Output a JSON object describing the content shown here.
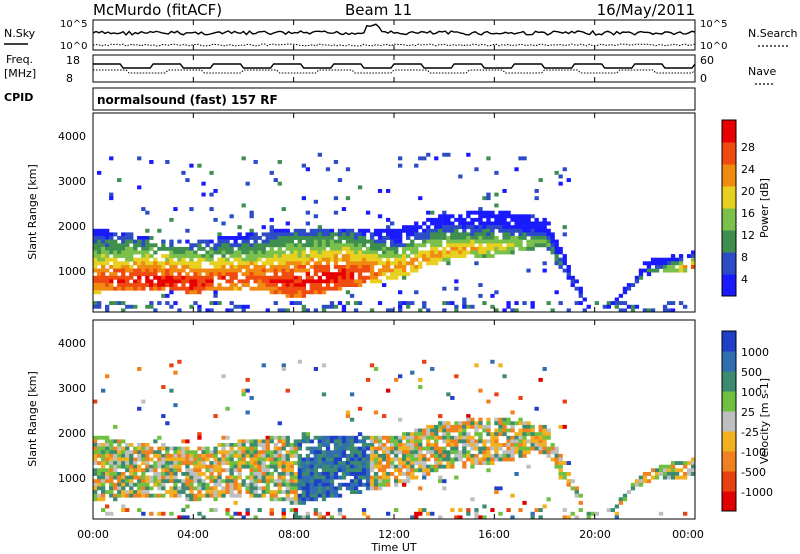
{
  "header": {
    "station": "McMurdo (fitACF)",
    "beam": "Beam 11",
    "date": "16/May/2011",
    "mode": "normalsound (fast) 157 RF",
    "cpid_label": "CPID"
  },
  "top_panel": {
    "left_label": "N.Sky",
    "right_label": "N.Search",
    "left_ticks": [
      "10^5",
      "10^0"
    ],
    "right_ticks": [
      "10^5",
      "10^0"
    ]
  },
  "freq_panel": {
    "left_label_1": "Freq.",
    "left_label_2": "[MHz]",
    "right_label": "Nave",
    "left_ticks": [
      "18",
      "8"
    ],
    "right_ticks": [
      "60",
      "0"
    ]
  },
  "x_axis": {
    "label": "Time UT",
    "ticks": [
      "00:00",
      "04:00",
      "08:00",
      "12:00",
      "16:00",
      "20:00",
      "00:00"
    ]
  },
  "power_panel": {
    "ylabel": "Slant Range [km]",
    "yticks": [
      "1000",
      "2000",
      "3000",
      "4000"
    ],
    "colorbar_label": "Power [dB]",
    "colorbar_ticks": [
      "4",
      "8",
      "12",
      "16",
      "20",
      "24",
      "28"
    ],
    "colorbar_colors": [
      "#1a1aff",
      "#2c4cc6",
      "#3e8f4f",
      "#7bc04a",
      "#e8d020",
      "#f08a10",
      "#f04a10",
      "#e80000"
    ]
  },
  "velocity_panel": {
    "ylabel": "Slant Range [km]",
    "yticks": [
      "1000",
      "2000",
      "3000",
      "4000"
    ],
    "colorbar_label": "Velocity [m s-1]",
    "colorbar_ticks": [
      "1000",
      "500",
      "100",
      "25",
      "-25",
      "-100",
      "-500",
      "-1000"
    ],
    "colorbar_colors": [
      "#1f3fc8",
      "#2f6fb0",
      "#3c8a70",
      "#6fc040",
      "#bfbfbf",
      "#f0b020",
      "#f08020",
      "#e84010",
      "#e00000"
    ]
  },
  "chart_data": {
    "type": "heatmap",
    "x_range_hours": [
      0,
      24
    ],
    "y_range_km": [
      180,
      4500
    ],
    "power_profile": [
      {
        "t": 0,
        "lo": 600,
        "hi": 2000,
        "peak": 24
      },
      {
        "t": 2,
        "lo": 650,
        "hi": 1800,
        "peak": 28
      },
      {
        "t": 4,
        "lo": 600,
        "hi": 1700,
        "peak": 28
      },
      {
        "t": 6,
        "lo": 700,
        "hi": 1900,
        "peak": 24
      },
      {
        "t": 8,
        "lo": 500,
        "hi": 2000,
        "peak": 28
      },
      {
        "t": 10,
        "lo": 700,
        "hi": 2000,
        "peak": 28
      },
      {
        "t": 12,
        "lo": 900,
        "hi": 2000,
        "peak": 20
      },
      {
        "t": 14,
        "lo": 1300,
        "hi": 2300,
        "peak": 20
      },
      {
        "t": 16,
        "lo": 1400,
        "hi": 2400,
        "peak": 16
      },
      {
        "t": 18,
        "lo": 1600,
        "hi": 2200,
        "peak": 12
      },
      {
        "t": 20,
        "lo": 0,
        "hi": 0,
        "peak": 0
      },
      {
        "t": 22,
        "lo": 1000,
        "hi": 1300,
        "peak": 8
      },
      {
        "t": 24,
        "lo": 1100,
        "hi": 1500,
        "peak": 24
      }
    ]
  }
}
